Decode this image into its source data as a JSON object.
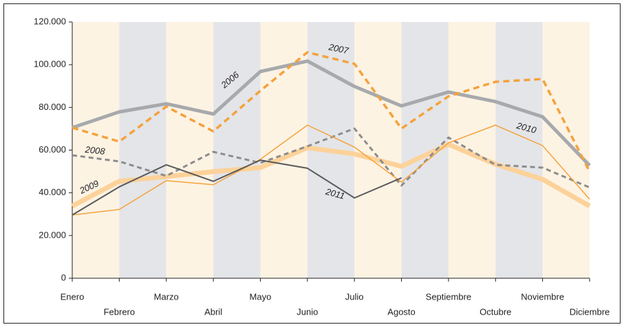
{
  "chart_data": {
    "type": "line",
    "categories": [
      "Enero",
      "Febrero",
      "Marzo",
      "Abril",
      "Mayo",
      "Junio",
      "Julio",
      "Agosto",
      "Septiembre",
      "Octubre",
      "Noviembre",
      "Diciembre"
    ],
    "series": [
      {
        "name": "2006",
        "color": "#a7a9ac",
        "values": [
          70500,
          77900,
          81700,
          76900,
          96800,
          101700,
          89800,
          80700,
          87200,
          82700,
          75600,
          52800
        ]
      },
      {
        "name": "2007",
        "color": "#f4a23c",
        "values": [
          70500,
          64000,
          80400,
          68800,
          87800,
          105800,
          100400,
          70100,
          85200,
          92000,
          93300,
          49900
        ]
      },
      {
        "name": "2008",
        "color": "#8c8c8c",
        "values": [
          57600,
          54700,
          47900,
          59200,
          54000,
          61800,
          70100,
          43400,
          65900,
          53100,
          51800,
          42500
        ]
      },
      {
        "name": "2009",
        "color": "#fcd29a",
        "values": [
          33800,
          45400,
          47600,
          49900,
          51800,
          61100,
          58200,
          52400,
          62700,
          53400,
          46300,
          33800
        ]
      },
      {
        "name": "2010",
        "color": "#f4a23c",
        "values": [
          29600,
          32200,
          45700,
          43800,
          55700,
          71700,
          61400,
          45000,
          63400,
          71700,
          62100,
          37000
        ]
      },
      {
        "name": "2011",
        "color": "#58595b",
        "values": [
          29600,
          42800,
          53100,
          45400,
          55300,
          51500,
          37600,
          47000,
          null,
          null,
          null,
          null
        ]
      }
    ],
    "ylim": [
      0,
      120000
    ],
    "yticks": [
      0,
      {
        "value": 20000,
        "label": "20.000"
      },
      {
        "value": 40000,
        "label": "40.000"
      },
      {
        "value": 60000,
        "label": "60.000"
      },
      {
        "value": 80000,
        "label": "80.000"
      },
      {
        "value": 100000,
        "label": "100.000"
      },
      {
        "value": 120000,
        "label": "120.000"
      }
    ]
  }
}
